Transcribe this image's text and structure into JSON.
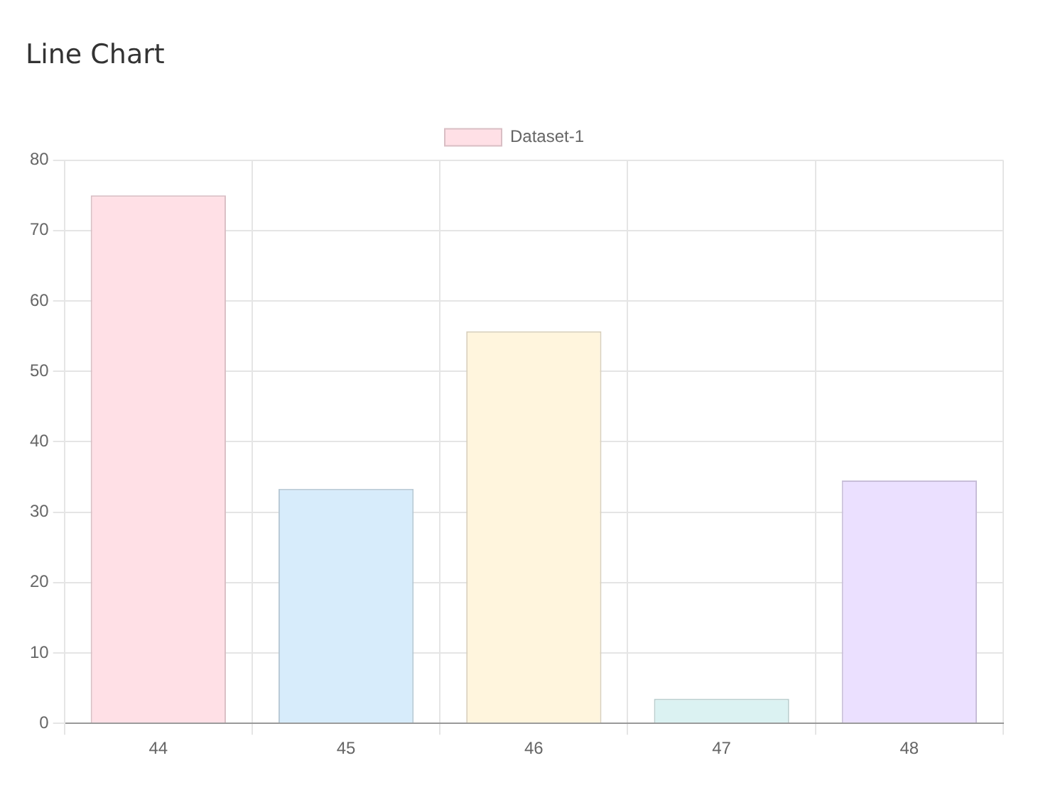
{
  "chart_data": {
    "type": "bar",
    "title": "Line Chart",
    "categories": [
      "44",
      "45",
      "46",
      "47",
      "48"
    ],
    "series": [
      {
        "name": "Dataset-1",
        "values": [
          75,
          33.3,
          55.7,
          3.5,
          34.5
        ],
        "colors": [
          "#ffe0e6",
          "#d7ecfb",
          "#fff5dd",
          "#dbf2f2",
          "#ebe0ff"
        ]
      }
    ],
    "ylim": [
      0,
      80
    ],
    "yticks": [
      0,
      10,
      20,
      30,
      40,
      50,
      60,
      70,
      80
    ],
    "grid": true,
    "legend": "top"
  }
}
